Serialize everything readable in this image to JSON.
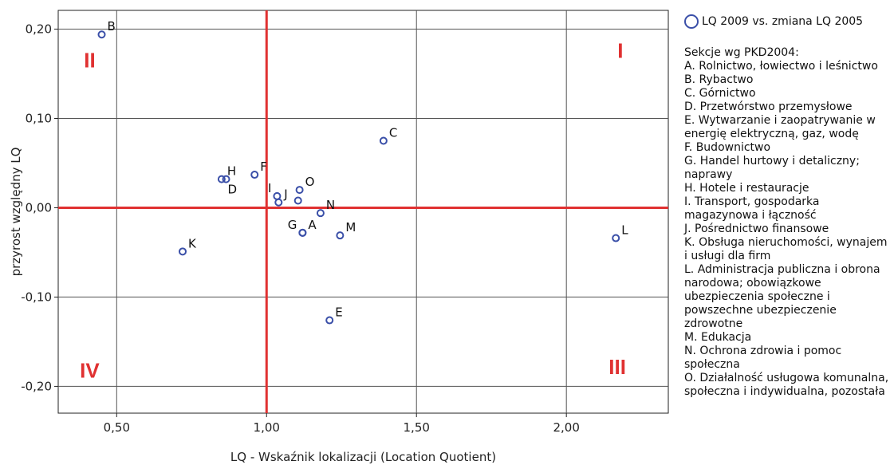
{
  "colors": {
    "marker": "#3a4fa8",
    "reference_lines": "#e03131",
    "quadrant_labels": "#e03131",
    "plot_background": "#ffffff",
    "grid": "#555555"
  },
  "legend": {
    "series_label": "LQ 2009 vs. zmiana LQ 2005",
    "heading": "Sekcje wg PKD2004:",
    "items": [
      "A. Rolnictwo, łowiectwo i leśnictwo",
      "B. Rybactwo",
      "C. Górnictwo",
      "D. Przetwórstwo przemysłowe",
      "E. Wytwarzanie i zaopatrywanie w energię elektryczną, gaz, wodę",
      "F. Budownictwo",
      "G. Handel hurtowy i detaliczny; naprawy",
      "H. Hotele i restauracje",
      "I. Transport, gospodarka magazynowa i łączność",
      "J. Pośrednictwo finansowe",
      "K. Obsługa nieruchomości, wynajem i usługi dla firm",
      "L. Administracja publiczna i obrona narodowa; obowiązkowe ubezpieczenia społeczne i powszechne ubezpieczenie zdrowotne",
      "M. Edukacja",
      "N. Ochrona zdrowia i pomoc społeczna",
      "O. Działalność usługowa komunalna, społeczna i indywidualna, pozostała"
    ]
  },
  "chart_data": {
    "type": "scatter",
    "xlabel": "LQ - Wskaźnik lokalizacji (Location Quotient)",
    "ylabel": "przyrost względny LQ",
    "xlim": [
      0.305,
      2.34
    ],
    "ylim": [
      -0.23,
      0.221
    ],
    "x_ticks": [
      0.5,
      1.0,
      1.5,
      2.0
    ],
    "x_tick_labels": [
      "0,50",
      "1,00",
      "1,50",
      "2,00"
    ],
    "y_ticks": [
      0.2,
      0.1,
      0.0,
      -0.1,
      -0.2
    ],
    "y_tick_labels": [
      "0,20",
      "0,10",
      "0,00",
      "-0,10",
      "-0,20"
    ],
    "grid": true,
    "reference_lines": {
      "x": 1.0,
      "y": 0.0
    },
    "legend_position": "right",
    "quadrant_labels": [
      {
        "text": "I",
        "x": 2.18,
        "y": 0.176
      },
      {
        "text": "II",
        "x": 0.41,
        "y": 0.165
      },
      {
        "text": "III",
        "x": 2.17,
        "y": -0.178
      },
      {
        "text": "IV",
        "x": 0.41,
        "y": -0.182
      }
    ],
    "points": [
      {
        "label": "A",
        "x": 1.12,
        "y": -0.028,
        "label_pos": "right-up"
      },
      {
        "label": "B",
        "x": 0.45,
        "y": 0.194,
        "label_pos": "right-up"
      },
      {
        "label": "C",
        "x": 1.39,
        "y": 0.075,
        "label_pos": "right-up"
      },
      {
        "label": "D",
        "x": 0.865,
        "y": 0.032,
        "label_pos": "below"
      },
      {
        "label": "E",
        "x": 1.21,
        "y": -0.126,
        "label_pos": "right-up"
      },
      {
        "label": "F",
        "x": 0.96,
        "y": 0.037,
        "label_pos": "right-up"
      },
      {
        "label": "G",
        "x": 1.12,
        "y": -0.028,
        "label_pos": "left-up"
      },
      {
        "label": "H",
        "x": 0.85,
        "y": 0.032,
        "label_pos": "right-up"
      },
      {
        "label": "I",
        "x": 1.035,
        "y": 0.013,
        "label_pos": "left-up"
      },
      {
        "label": "J",
        "x": 1.04,
        "y": 0.006,
        "label_pos": "right-up"
      },
      {
        "label": "K",
        "x": 0.72,
        "y": -0.049,
        "label_pos": "right-up"
      },
      {
        "label": "L",
        "x": 2.165,
        "y": -0.034,
        "label_pos": "right-up"
      },
      {
        "label": "M",
        "x": 1.245,
        "y": -0.031,
        "label_pos": "right-up"
      },
      {
        "label": "N",
        "x": 1.18,
        "y": -0.006,
        "label_pos": "right-up"
      },
      {
        "label": "O",
        "x": 1.11,
        "y": 0.02,
        "label_pos": "right-up"
      },
      {
        "label": "",
        "x": 1.105,
        "y": 0.008,
        "label_pos": "none"
      }
    ]
  }
}
